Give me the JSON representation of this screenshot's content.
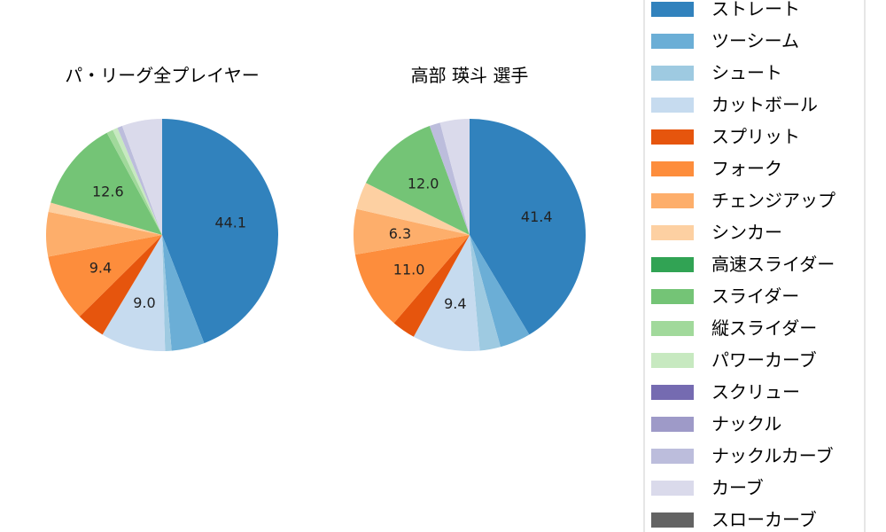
{
  "chart_data": [
    {
      "type": "pie",
      "title": "パ・リーグ全プレイヤー",
      "values": [
        44.1,
        4.6,
        0.9,
        9.0,
        4.0,
        9.4,
        6.2,
        1.3,
        0,
        12.6,
        0.9,
        0.7,
        0,
        0,
        0.7,
        5.6,
        0
      ],
      "data_labels": [
        "44.1",
        "",
        "",
        "9.0",
        "",
        "9.4",
        "",
        "",
        "",
        "12.6",
        "",
        "",
        "",
        "",
        "",
        "",
        ""
      ]
    },
    {
      "type": "pie",
      "title": "高部 瑛斗  選手",
      "values": [
        41.4,
        4.3,
        2.9,
        9.4,
        3.3,
        11.0,
        6.3,
        3.8,
        0,
        12.0,
        0,
        0,
        0,
        0,
        1.5,
        4.1,
        0
      ],
      "data_labels": [
        "41.4",
        "",
        "",
        "9.4",
        "",
        "11.0",
        "6.3",
        "",
        "",
        "12.0",
        "",
        "",
        "",
        "",
        "",
        "",
        ""
      ]
    }
  ],
  "legend": {
    "placement": "right",
    "entries": [
      "ストレート",
      "ツーシーム",
      "シュート",
      "カットボール",
      "スプリット",
      "フォーク",
      "チェンジアップ",
      "シンカー",
      "高速スライダー",
      "スライダー",
      "縦スライダー",
      "パワーカーブ",
      "スクリュー",
      "ナックル",
      "ナックルカーブ",
      "カーブ",
      "スローカーブ"
    ],
    "colors": [
      "#3182bd",
      "#6baed6",
      "#9ecae1",
      "#c6dbef",
      "#e6550d",
      "#fd8d3c",
      "#fdae6b",
      "#fdd0a2",
      "#31a354",
      "#74c476",
      "#a1d99b",
      "#c7e9c0",
      "#756bb1",
      "#9e9ac8",
      "#bcbddc",
      "#dadaeb",
      "#636363"
    ]
  }
}
